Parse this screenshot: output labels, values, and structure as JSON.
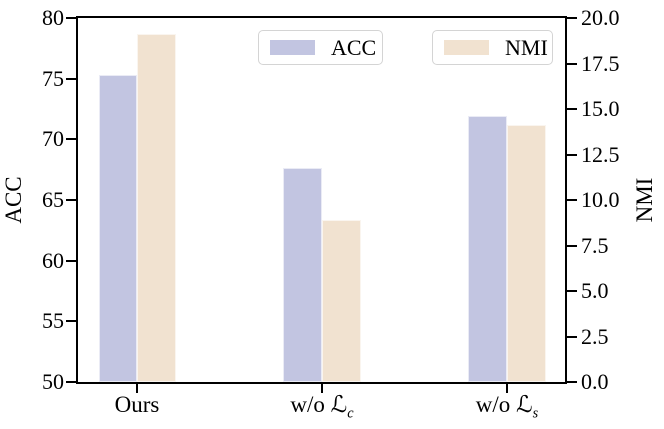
{
  "chart_data": {
    "type": "bar",
    "title": "",
    "categories": [
      {
        "text": "Ours"
      },
      {
        "prefix": "w/o ",
        "symbol": "ℒ",
        "sub": "c"
      },
      {
        "prefix": "w/o ",
        "symbol": "ℒ",
        "sub": "s"
      }
    ],
    "series": [
      {
        "name": "ACC",
        "axis": "left",
        "color": "#c2c5e1",
        "values": [
          75.3,
          67.6,
          71.9
        ]
      },
      {
        "name": "NMI",
        "axis": "right",
        "color": "#f1e2d0",
        "values": [
          19.1,
          8.9,
          14.1
        ]
      }
    ],
    "left_axis": {
      "label": "ACC",
      "min": 50,
      "max": 80,
      "ticks": [
        "80",
        "75",
        "70",
        "65",
        "60",
        "55",
        "50"
      ]
    },
    "right_axis": {
      "label": "NMI",
      "min": 0,
      "max": 20,
      "ticks": [
        "20.0",
        "17.5",
        "15.0",
        "12.5",
        "10.0",
        "7.5",
        "5.0",
        "2.5",
        "0.0"
      ]
    },
    "legend": [
      {
        "label": "ACC",
        "color": "#c2c5e1"
      },
      {
        "label": "NMI",
        "color": "#f1e2d0"
      }
    ],
    "layout": {
      "grid": false,
      "legend_position": "upper center, two separate boxes",
      "group_center_fracs": [
        0.1212,
        0.501,
        0.8809
      ],
      "bar_width_frac": 0.0791,
      "spine_color": "#000000",
      "background": "#ffffff"
    }
  }
}
